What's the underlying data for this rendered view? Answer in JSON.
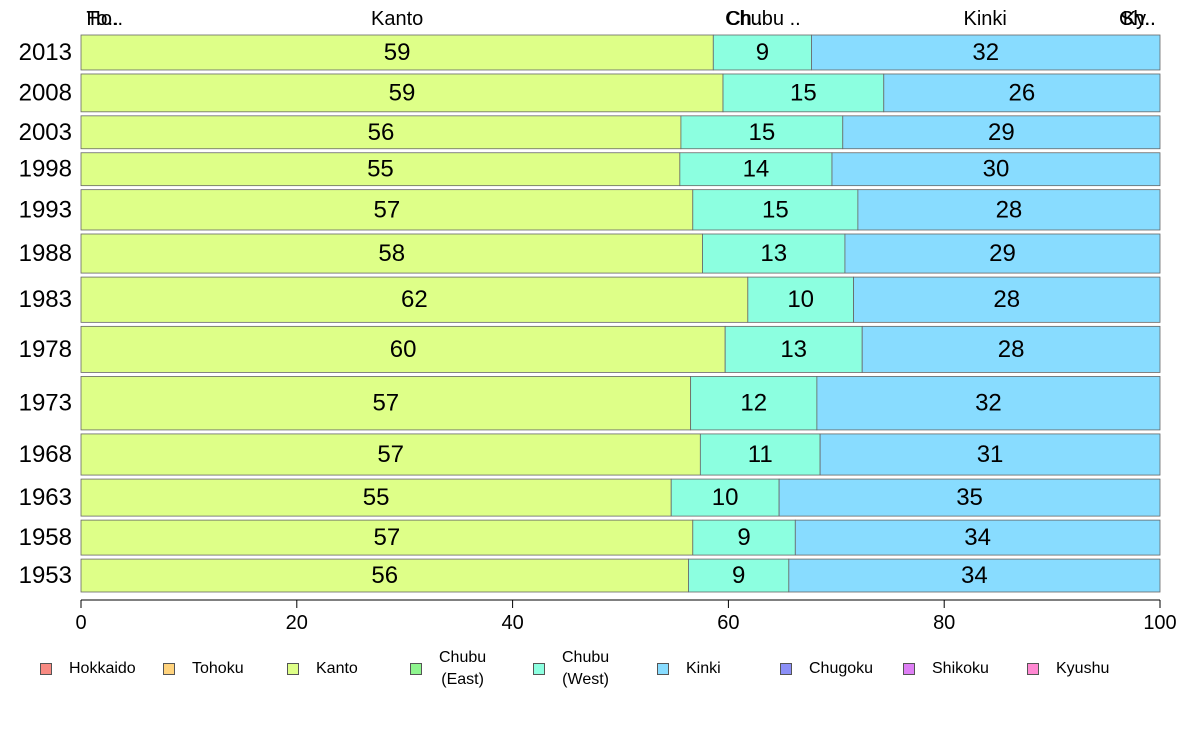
{
  "chart_data": {
    "type": "bar",
    "orientation": "horizontal",
    "stacked": true,
    "categories": [
      "2013",
      "2008",
      "2003",
      "1998",
      "1993",
      "1988",
      "1983",
      "1978",
      "1973",
      "1968",
      "1963",
      "1958",
      "1953"
    ],
    "series": [
      {
        "name": "Hokkaido",
        "color": "#f88a82",
        "values": [
          0,
          0,
          0,
          0,
          0,
          0,
          0,
          0,
          0,
          0,
          0,
          0,
          0
        ]
      },
      {
        "name": "Tohoku",
        "color": "#ffd37d",
        "values": [
          0,
          0,
          0,
          0,
          0,
          0,
          0,
          0,
          0,
          0,
          0,
          0,
          0
        ]
      },
      {
        "name": "Kanto",
        "color": "#deff88",
        "values": [
          58.6,
          59.5,
          55.6,
          55.5,
          56.7,
          57.6,
          61.8,
          59.7,
          56.5,
          57.4,
          54.7,
          56.7,
          56.3
        ]
      },
      {
        "name": "Chubu\n(East)",
        "color": "#8ef58e",
        "values": [
          0,
          0,
          0,
          0,
          0,
          0,
          0,
          0,
          0,
          0,
          0,
          0,
          0
        ]
      },
      {
        "name": "Chubu\n(West)",
        "color": "#8cffe0",
        "values": [
          9.1,
          14.9,
          15.0,
          14.1,
          15.3,
          13.2,
          9.8,
          12.7,
          11.7,
          11.1,
          10.0,
          9.5,
          9.3
        ]
      },
      {
        "name": "Kinki",
        "color": "#88dcff",
        "values": [
          32.3,
          25.6,
          29.4,
          30.4,
          28.0,
          29.2,
          28.4,
          27.6,
          31.8,
          31.5,
          35.3,
          33.8,
          34.4
        ]
      },
      {
        "name": "Chugoku",
        "color": "#8b8ff7",
        "values": [
          0,
          0,
          0,
          0,
          0,
          0,
          0,
          0,
          0,
          0,
          0,
          0,
          0
        ]
      },
      {
        "name": "Shikoku",
        "color": "#de7ff5",
        "values": [
          0,
          0,
          0,
          0,
          0,
          0,
          0,
          0,
          0,
          0,
          0,
          0,
          0
        ]
      },
      {
        "name": "Kyushu",
        "color": "#ff88d2",
        "values": [
          0,
          0,
          0,
          0,
          0,
          0,
          0,
          0,
          0,
          0,
          0,
          0,
          0
        ]
      }
    ],
    "data_labels": [
      [
        "59",
        "9",
        "32"
      ],
      [
        "59",
        "15",
        "26"
      ],
      [
        "56",
        "15",
        "29"
      ],
      [
        "55",
        "14",
        "30"
      ],
      [
        "57",
        "15",
        "28"
      ],
      [
        "58",
        "13",
        "29"
      ],
      [
        "62",
        "10",
        "28"
      ],
      [
        "60",
        "13",
        "28"
      ],
      [
        "57",
        "12",
        "32"
      ],
      [
        "57",
        "11",
        "31"
      ],
      [
        "55",
        "10",
        "35"
      ],
      [
        "57",
        "9",
        "34"
      ],
      [
        "56",
        "9",
        "34"
      ]
    ],
    "row_weights": [
      0.85,
      0.92,
      0.8,
      0.8,
      0.98,
      0.95,
      1.1,
      1.12,
      1.3,
      1.0,
      0.9,
      0.85,
      0.8
    ],
    "top_labels": [
      {
        "text": "Ho..",
        "pos": 0.5
      },
      {
        "text": "To..",
        "pos": 0.5
      },
      {
        "text": "Kanto",
        "pos": 29.3
      },
      {
        "text": "Ch..",
        "pos": 61.5
      },
      {
        "text": "Chubu ..",
        "pos": 63.2
      },
      {
        "text": "Kinki",
        "pos": 83.8
      },
      {
        "text": "Ch..",
        "pos": 99.6
      },
      {
        "text": "Sh..",
        "pos": 99.6
      },
      {
        "text": "Ky..",
        "pos": 99.6
      }
    ],
    "xticks": [
      "0",
      "20",
      "40",
      "60",
      "80",
      "100"
    ],
    "xlim": [
      0,
      100
    ],
    "title": "",
    "xlabel": "",
    "ylabel": "",
    "grid": false,
    "legend_position": "bottom"
  }
}
